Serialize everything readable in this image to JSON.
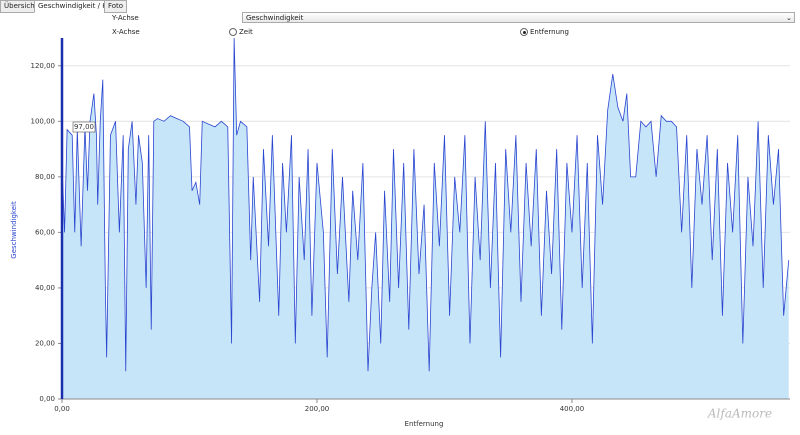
{
  "tabs": [
    "Übersicht",
    "Geschwindigkeit / Höhe",
    "Foto"
  ],
  "controls": {
    "y_axis_label": "Y-Achse",
    "y_axis_select": "Geschwindigkeit",
    "x_axis_label": "X-Achse",
    "x_options": [
      "Zeit",
      "Entfernung"
    ]
  },
  "watermark": "AlfaAmore",
  "chart_data": {
    "type": "area",
    "y_label": "Geschwindigkeit",
    "x_label": "Entfernung",
    "annotation": "97,00",
    "color": "#2a45d0",
    "fill": "#c6e5f8",
    "grid": true,
    "xlim": [
      0,
      571
    ],
    "ylim": [
      0,
      130
    ],
    "xticks": [
      {
        "value": 0,
        "label": "0,00"
      },
      {
        "value": 200,
        "label": "200,00"
      },
      {
        "value": 400,
        "label": "400,00"
      }
    ],
    "yticks": [
      {
        "value": 0,
        "label": "0,00"
      },
      {
        "value": 20,
        "label": "20,00"
      },
      {
        "value": 40,
        "label": "40,00"
      },
      {
        "value": 60,
        "label": "60,00"
      },
      {
        "value": 80,
        "label": "80,00"
      },
      {
        "value": 100,
        "label": "100,00"
      },
      {
        "value": 120,
        "label": "120,00"
      }
    ],
    "x": [
      0,
      2,
      4,
      8,
      10,
      12,
      15,
      18,
      20,
      22,
      25,
      27,
      28,
      30,
      32,
      34,
      35,
      38,
      42,
      45,
      48,
      50,
      52,
      55,
      58,
      60,
      63,
      66,
      68,
      70,
      72,
      75,
      80,
      85,
      90,
      95,
      100,
      102,
      105,
      108,
      110,
      115,
      120,
      125,
      130,
      133,
      135,
      137,
      140,
      145,
      148,
      150,
      155,
      158,
      162,
      165,
      170,
      173,
      176,
      180,
      183,
      186,
      190,
      193,
      196,
      200,
      205,
      208,
      212,
      216,
      220,
      225,
      228,
      232,
      236,
      240,
      243,
      246,
      250,
      253,
      257,
      260,
      264,
      268,
      272,
      276,
      280,
      284,
      288,
      292,
      296,
      300,
      304,
      308,
      312,
      316,
      320,
      324,
      328,
      332,
      336,
      340,
      344,
      348,
      352,
      356,
      360,
      364,
      368,
      372,
      376,
      380,
      384,
      388,
      392,
      396,
      400,
      404,
      408,
      412,
      416,
      420,
      424,
      428,
      432,
      436,
      440,
      443,
      446,
      450,
      454,
      458,
      462,
      466,
      470,
      474,
      478,
      482,
      486,
      490,
      494,
      498,
      502,
      506,
      510,
      514,
      518,
      522,
      526,
      530,
      534,
      538,
      542,
      546,
      550,
      554,
      558,
      562,
      566,
      570
    ],
    "values": [
      85,
      60,
      97,
      95,
      60,
      97,
      55,
      98,
      75,
      100,
      110,
      95,
      70,
      100,
      115,
      40,
      15,
      95,
      100,
      60,
      95,
      10,
      90,
      100,
      70,
      95,
      85,
      40,
      95,
      25,
      100,
      101,
      100,
      102,
      101,
      100,
      98,
      75,
      78,
      70,
      100,
      99,
      98,
      100,
      98,
      20,
      130,
      95,
      100,
      98,
      50,
      80,
      35,
      90,
      55,
      95,
      30,
      85,
      60,
      95,
      20,
      80,
      50,
      90,
      30,
      85,
      60,
      15,
      90,
      45,
      80,
      35,
      75,
      50,
      85,
      10,
      40,
      60,
      20,
      75,
      35,
      90,
      40,
      85,
      25,
      90,
      45,
      70,
      10,
      85,
      55,
      95,
      30,
      80,
      60,
      95,
      20,
      80,
      50,
      100,
      40,
      85,
      15,
      90,
      60,
      95,
      35,
      85,
      55,
      90,
      30,
      75,
      45,
      90,
      25,
      85,
      60,
      95,
      40,
      85,
      20,
      95,
      70,
      104,
      117,
      105,
      100,
      110,
      80,
      80,
      100,
      98,
      100,
      80,
      102,
      100,
      100,
      98,
      60,
      95,
      40,
      90,
      70,
      95,
      50,
      90,
      30,
      85,
      60,
      95,
      20,
      80,
      55,
      100,
      40,
      95,
      70,
      90,
      30,
      50
    ]
  }
}
